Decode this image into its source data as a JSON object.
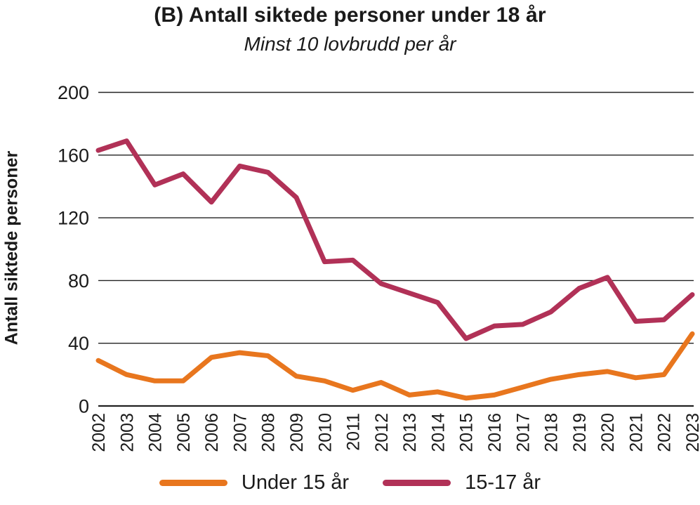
{
  "chart_data": {
    "type": "line",
    "title": "(B) Antall siktede personer under 18 år",
    "subtitle": "Minst 10 lovbrudd per år",
    "ylabel": "Antall siktede personer",
    "xlabel": "",
    "categories": [
      "2002",
      "2003",
      "2004",
      "2005",
      "2006",
      "2007",
      "2008",
      "2009",
      "2010",
      "2011",
      "2012",
      "2013",
      "2014",
      "2015",
      "2016",
      "2017",
      "2018",
      "2019",
      "2020",
      "2021",
      "2022",
      "2023"
    ],
    "series": [
      {
        "name": "Under 15 år",
        "color": "#E8761E",
        "values": [
          29,
          20,
          16,
          16,
          31,
          34,
          32,
          19,
          16,
          10,
          15,
          7,
          9,
          5,
          7,
          12,
          17,
          20,
          22,
          18,
          20,
          46
        ]
      },
      {
        "name": "15-17 år",
        "color": "#B13157",
        "values": [
          163,
          169,
          141,
          148,
          130,
          153,
          149,
          133,
          92,
          93,
          78,
          72,
          66,
          43,
          51,
          52,
          60,
          75,
          82,
          54,
          55,
          71
        ]
      }
    ],
    "ylim": [
      0,
      200
    ],
    "yticks": [
      0,
      40,
      80,
      120,
      160,
      200
    ],
    "grid": true,
    "legend_position": "bottom"
  }
}
